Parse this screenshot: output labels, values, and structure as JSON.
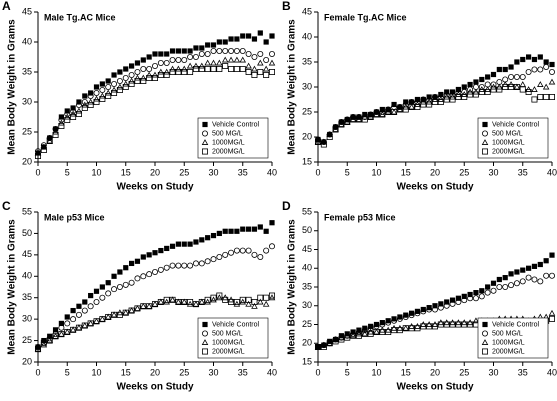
{
  "chart_data": [
    {
      "type": "scatter",
      "label": "A",
      "title": "Male Tg.AC Mice",
      "ylabel": "Mean Body Weight in Grams",
      "xlabel": "Weeks on Study",
      "xlim": [
        0,
        40
      ],
      "xticks": [
        0,
        5,
        10,
        15,
        20,
        25,
        30,
        35,
        40
      ],
      "ylim": [
        20,
        45
      ],
      "yticks": [
        20,
        25,
        30,
        35,
        40,
        45
      ],
      "legend": "lower right",
      "x": [
        0,
        1,
        2,
        3,
        4,
        5,
        6,
        7,
        8,
        9,
        10,
        11,
        12,
        13,
        14,
        15,
        16,
        17,
        18,
        19,
        20,
        21,
        22,
        23,
        24,
        25,
        26,
        27,
        28,
        29,
        30,
        31,
        32,
        33,
        34,
        35,
        36,
        37,
        38,
        39,
        40
      ],
      "series": [
        {
          "name": "Vehicle Control",
          "color": "#000000",
          "marker": "square-filled",
          "values": [
            21.5,
            22.5,
            24,
            25.5,
            27.5,
            28.5,
            29,
            30,
            31,
            31.5,
            32.5,
            33,
            33.5,
            34.5,
            35,
            35.5,
            36,
            36.5,
            37,
            37.5,
            38,
            38,
            38,
            38.5,
            38.5,
            38.5,
            38.5,
            39,
            39,
            39.5,
            39.5,
            40,
            40,
            40.5,
            40.5,
            41,
            41,
            40.5,
            41.5,
            40,
            41
          ]
        },
        {
          "name": "500 MG/L",
          "color": "#000000",
          "marker": "circle",
          "values": [
            21.8,
            22.8,
            24,
            25.5,
            27,
            28,
            28.5,
            29.5,
            30,
            31,
            31.5,
            32,
            32.5,
            33,
            33.5,
            34,
            34.5,
            35,
            35.5,
            35.5,
            36,
            36.5,
            36.5,
            37,
            37,
            37,
            37.5,
            37.5,
            38,
            38,
            38.5,
            38.5,
            38.5,
            38.5,
            38.5,
            38.5,
            38,
            37.5,
            38,
            37,
            38
          ]
        },
        {
          "name": "1000MG/L",
          "color": "#000000",
          "marker": "triangle",
          "values": [
            21.5,
            22.5,
            23.5,
            25,
            26.5,
            27.5,
            28,
            28.5,
            29.5,
            30,
            30.5,
            31,
            31.5,
            32,
            32.5,
            33,
            33.5,
            34,
            34,
            34.5,
            34.5,
            35,
            35,
            35.5,
            35.5,
            35.5,
            36,
            36,
            36,
            36.5,
            36.5,
            36.5,
            37,
            37,
            37,
            37,
            36,
            35.5,
            36.5,
            35.5,
            36.5
          ]
        },
        {
          "name": "2000MG/L",
          "color": "#000000",
          "marker": "square",
          "values": [
            21,
            22,
            23.5,
            24.5,
            26,
            27,
            27.5,
            28,
            29,
            29.5,
            30,
            30.5,
            31,
            31.5,
            32,
            32.5,
            33,
            33.5,
            33.5,
            34,
            34,
            34.5,
            34.5,
            35,
            35,
            35,
            35,
            35.5,
            35.5,
            35.5,
            35.5,
            35.5,
            36,
            35.5,
            35.5,
            35.5,
            35,
            34.5,
            35,
            34.5,
            35
          ]
        }
      ]
    },
    {
      "type": "scatter",
      "label": "B",
      "title": "Female Tg.AC Mice",
      "ylabel": "Mean Body Weight in Grams",
      "xlabel": "Weeks on Study",
      "xlim": [
        0,
        40
      ],
      "xticks": [
        0,
        5,
        10,
        15,
        20,
        25,
        30,
        35,
        40
      ],
      "ylim": [
        15,
        45
      ],
      "yticks": [
        15,
        20,
        25,
        30,
        35,
        40,
        45
      ],
      "legend": "lower right",
      "x": [
        0,
        1,
        2,
        3,
        4,
        5,
        6,
        7,
        8,
        9,
        10,
        11,
        12,
        13,
        14,
        15,
        16,
        17,
        18,
        19,
        20,
        21,
        22,
        23,
        24,
        25,
        26,
        27,
        28,
        29,
        30,
        31,
        32,
        33,
        34,
        35,
        36,
        37,
        38,
        39,
        40
      ],
      "series": [
        {
          "name": "Vehicle Control",
          "color": "#000000",
          "marker": "square-filled",
          "values": [
            19.5,
            19,
            20.5,
            22,
            23,
            23.5,
            24,
            24,
            24.5,
            24.5,
            25,
            25.5,
            25.5,
            26.5,
            26,
            27,
            27,
            27.5,
            27.5,
            28,
            28,
            28.5,
            29,
            29,
            29.5,
            30,
            30.5,
            31,
            31.5,
            32,
            32.5,
            33.5,
            33.5,
            34,
            35,
            35.5,
            36,
            35.5,
            36,
            35,
            34.5
          ]
        },
        {
          "name": "500 MG/L",
          "color": "#000000",
          "marker": "circle",
          "values": [
            19.5,
            19,
            20.5,
            22,
            23,
            23.5,
            24,
            24,
            24,
            24.5,
            25,
            25,
            25.5,
            26,
            26,
            26.5,
            27,
            27,
            27.5,
            27.5,
            28,
            28,
            28.5,
            28.5,
            29,
            29,
            29.5,
            30,
            30,
            30.5,
            30.5,
            31,
            31.5,
            32,
            32,
            32,
            33,
            33.5,
            33.5,
            34,
            33
          ]
        },
        {
          "name": "1000MG/L",
          "color": "#000000",
          "marker": "triangle",
          "values": [
            19,
            19,
            20.5,
            21.5,
            22.5,
            23,
            23.5,
            23.5,
            24,
            24,
            24.5,
            24.5,
            25,
            25,
            25.5,
            26,
            26,
            26.5,
            27,
            27,
            27.5,
            27.5,
            28,
            28,
            28.5,
            28.5,
            29,
            29,
            29.5,
            29.5,
            30,
            30,
            30.5,
            30.5,
            30,
            30.5,
            29.5,
            29.5,
            30.5,
            30,
            31
          ]
        },
        {
          "name": "2000MG/L",
          "color": "#000000",
          "marker": "square",
          "values": [
            19,
            18.5,
            20,
            21.5,
            22.5,
            23,
            23.5,
            23.5,
            23.5,
            24,
            24.5,
            24.5,
            25,
            25,
            25.5,
            25.5,
            26,
            26,
            26.5,
            26.5,
            27,
            27,
            27.5,
            27.5,
            28,
            28,
            28.5,
            28.5,
            29,
            29,
            29.5,
            29.5,
            30,
            30,
            30,
            29.5,
            29,
            27.5,
            28,
            28,
            28
          ]
        }
      ]
    },
    {
      "type": "scatter",
      "label": "C",
      "title": "Male p53 Mice",
      "ylabel": "Mean Body Weight in Grams",
      "xlabel": "Weeks on Study",
      "xlim": [
        0,
        40
      ],
      "xticks": [
        0,
        5,
        10,
        15,
        20,
        25,
        30,
        35,
        40
      ],
      "ylim": [
        20,
        55
      ],
      "yticks": [
        20,
        25,
        30,
        35,
        40,
        45,
        50,
        55
      ],
      "legend": "lower right",
      "x": [
        0,
        1,
        2,
        3,
        4,
        5,
        6,
        7,
        8,
        9,
        10,
        11,
        12,
        13,
        14,
        15,
        16,
        17,
        18,
        19,
        20,
        21,
        22,
        23,
        24,
        25,
        26,
        27,
        28,
        29,
        30,
        31,
        32,
        33,
        34,
        35,
        36,
        37,
        38,
        39,
        40
      ],
      "series": [
        {
          "name": "Vehicle Control",
          "color": "#000000",
          "marker": "square-filled",
          "values": [
            23.5,
            25,
            26,
            27.5,
            29,
            30.5,
            32,
            33,
            34,
            35.5,
            36.5,
            37.5,
            38.5,
            40,
            41,
            42,
            43,
            43.5,
            44.5,
            45,
            45.5,
            46,
            46.5,
            47,
            47.5,
            47.5,
            47.5,
            48,
            48.5,
            49,
            49.5,
            50,
            50.5,
            50.5,
            50.5,
            51,
            51,
            51,
            51.5,
            50.5,
            52.5
          ]
        },
        {
          "name": "500 MG/L",
          "color": "#000000",
          "marker": "circle",
          "values": [
            23.5,
            24.5,
            25.5,
            26.5,
            28,
            29,
            30,
            31,
            32,
            33,
            34,
            35,
            36,
            37,
            37.5,
            38,
            38.5,
            39.5,
            40,
            40.5,
            41,
            41.5,
            42,
            42.5,
            42.5,
            42.5,
            42.5,
            43,
            43,
            43.5,
            44,
            44.5,
            45,
            45.5,
            46,
            46,
            46,
            45,
            44.5,
            46,
            47
          ]
        },
        {
          "name": "1000MG/L",
          "color": "#000000",
          "marker": "triangle",
          "values": [
            23,
            24,
            25,
            26,
            26.5,
            27,
            27.5,
            28,
            28.5,
            29,
            29.5,
            30,
            30.5,
            31,
            31.5,
            31.5,
            32,
            32.5,
            33,
            33,
            33.5,
            34,
            34,
            34.5,
            34,
            34,
            33.5,
            33.5,
            34,
            34,
            34.5,
            35,
            35,
            34.5,
            33.5,
            34,
            33.5,
            33,
            34,
            33.5,
            35
          ]
        },
        {
          "name": "2000MG/L",
          "color": "#000000",
          "marker": "square",
          "values": [
            23,
            24.5,
            25,
            26,
            26.5,
            27,
            27.5,
            28,
            28.5,
            29,
            29.5,
            30,
            30.5,
            31,
            31,
            31.5,
            32,
            32.5,
            33,
            33,
            33.5,
            34,
            34.5,
            34.5,
            34,
            34,
            34,
            33.5,
            34,
            34.5,
            35,
            35.5,
            34.5,
            34,
            34,
            34.5,
            34.5,
            34,
            35,
            35,
            35.5
          ]
        }
      ]
    },
    {
      "type": "scatter",
      "label": "D",
      "title": "Female p53 Mice",
      "ylabel": "Mean Body Weight in Grams",
      "xlabel": "Weeks on Study",
      "xlim": [
        0,
        40
      ],
      "xticks": [
        0,
        5,
        10,
        15,
        20,
        25,
        30,
        35,
        40
      ],
      "ylim": [
        15,
        55
      ],
      "yticks": [
        15,
        20,
        25,
        30,
        35,
        40,
        45,
        50,
        55
      ],
      "legend": "lower right",
      "x": [
        0,
        1,
        2,
        3,
        4,
        5,
        6,
        7,
        8,
        9,
        10,
        11,
        12,
        13,
        14,
        15,
        16,
        17,
        18,
        19,
        20,
        21,
        22,
        23,
        24,
        25,
        26,
        27,
        28,
        29,
        30,
        31,
        32,
        33,
        34,
        35,
        36,
        37,
        38,
        39,
        40
      ],
      "series": [
        {
          "name": "Vehicle Control",
          "color": "#000000",
          "marker": "square-filled",
          "values": [
            19,
            19.5,
            20.5,
            21,
            22,
            22.5,
            23,
            23.5,
            24,
            24.5,
            25,
            25.5,
            26,
            26.5,
            27,
            27.5,
            28,
            28.5,
            29,
            29.5,
            30,
            30.5,
            31,
            31.5,
            32,
            32.5,
            33,
            33.5,
            34,
            35,
            36,
            37,
            37.5,
            38.5,
            39,
            39.5,
            40,
            40.5,
            41,
            42,
            43.5
          ]
        },
        {
          "name": "500 MG/L",
          "color": "#000000",
          "marker": "circle",
          "values": [
            19,
            19.5,
            20,
            21,
            21.5,
            22,
            22.5,
            23,
            23.5,
            24,
            24.5,
            25,
            25.5,
            26,
            26.5,
            27,
            27.5,
            28,
            28.5,
            29,
            29,
            29.5,
            30,
            30.5,
            31,
            31.5,
            32,
            32,
            32.5,
            33.5,
            34,
            35,
            35,
            35.5,
            36,
            36.5,
            37.5,
            37,
            36.5,
            38,
            38
          ]
        },
        {
          "name": "1000MG/L",
          "color": "#000000",
          "marker": "triangle",
          "values": [
            19,
            19.5,
            20,
            21,
            21.5,
            22,
            22,
            22.5,
            22.5,
            23,
            23,
            23.5,
            23.5,
            24,
            24,
            24,
            24.5,
            24.5,
            25,
            25,
            25,
            25.5,
            25.5,
            25.5,
            25.5,
            25.5,
            25.5,
            26,
            26,
            26,
            26,
            26.5,
            26.5,
            26.5,
            26.5,
            26.5,
            26,
            26.5,
            27,
            27,
            28
          ]
        },
        {
          "name": "2000MG/L",
          "color": "#000000",
          "marker": "square",
          "values": [
            19,
            19,
            20,
            20.5,
            21,
            21.5,
            22,
            22,
            22.5,
            22.5,
            23,
            23,
            23,
            23.5,
            23.5,
            24,
            24,
            24,
            24.5,
            24.5,
            24.5,
            25,
            25,
            25,
            25,
            25,
            25,
            25,
            25,
            25.5,
            25.5,
            25.5,
            25.5,
            25.5,
            25,
            25,
            24.5,
            24.5,
            25,
            26,
            26.5
          ]
        }
      ]
    }
  ]
}
